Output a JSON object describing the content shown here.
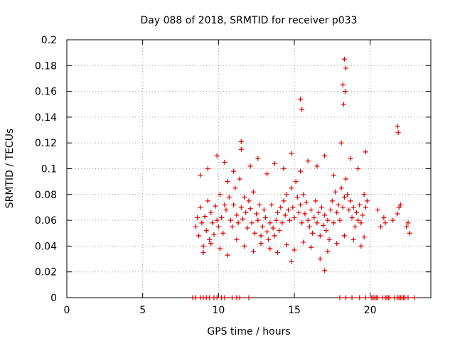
{
  "chart_data": {
    "type": "scatter",
    "title": "Day 088 of 2018, SRMTID for receiver p033",
    "xlabel": "GPS time / hours",
    "ylabel": "SRMTID / TECUs",
    "xlim": [
      0,
      24
    ],
    "ylim": [
      0,
      0.2
    ],
    "grid": true,
    "marker": "+",
    "color": "#dd0000",
    "x_ticks": [
      0,
      5,
      10,
      15,
      20
    ],
    "x_tick_labels": [
      "0",
      "5",
      "10",
      "15",
      "20"
    ],
    "y_ticks": [
      0,
      0.02,
      0.04,
      0.06,
      0.08,
      0.1,
      0.12,
      0.14,
      0.16,
      0.18,
      0.2
    ],
    "y_tick_labels": [
      "0",
      "0.02",
      "0.04",
      "0.06",
      "0.08",
      "0.1",
      "0.12",
      "0.14",
      "0.16",
      "0.18",
      "0.2"
    ],
    "series": [
      {
        "name": "SRMTID",
        "x": [
          8.5,
          8.6,
          8.7,
          8.8,
          8.9,
          9.0,
          9.1,
          9.2,
          9.3,
          9.4,
          9.5,
          9.6,
          9.7,
          9.8,
          9.9,
          10.0,
          10.1,
          10.2,
          10.3,
          10.4,
          10.5,
          10.6,
          10.7,
          10.8,
          10.9,
          11.0,
          11.1,
          11.2,
          11.3,
          11.4,
          11.5,
          11.6,
          11.7,
          11.8,
          11.9,
          12.0,
          12.1,
          12.2,
          12.3,
          12.4,
          12.5,
          12.6,
          12.7,
          12.8,
          12.9,
          13.0,
          13.1,
          13.2,
          13.3,
          13.4,
          13.5,
          13.6,
          13.7,
          13.8,
          13.9,
          14.0,
          14.1,
          14.2,
          14.3,
          14.4,
          14.5,
          14.6,
          14.7,
          14.8,
          14.9,
          15.0,
          15.1,
          15.2,
          15.3,
          15.4,
          15.5,
          15.6,
          15.7,
          15.8,
          15.9,
          16.0,
          16.1,
          16.2,
          16.3,
          16.4,
          16.5,
          16.6,
          16.7,
          16.8,
          16.9,
          17.0,
          17.1,
          17.2,
          17.3,
          17.4,
          17.5,
          17.6,
          17.7,
          17.8,
          17.9,
          18.0,
          18.1,
          18.2,
          18.3,
          18.4,
          18.5,
          18.6,
          18.7,
          18.8,
          18.9,
          19.0,
          19.1,
          19.2,
          19.3,
          19.4,
          19.5,
          19.6,
          19.7,
          19.8,
          20.5,
          20.7,
          20.9,
          21.0,
          21.5,
          21.8,
          21.9,
          22.0,
          22.4,
          22.5,
          22.6,
          9.0,
          9.5,
          10.1,
          10.6,
          11.2,
          11.7,
          12.3,
          12.8,
          13.4,
          13.9,
          14.5,
          15.0,
          15.6,
          16.1,
          16.7,
          17.2,
          17.8,
          18.3,
          18.9,
          19.4,
          8.8,
          9.3,
          9.9,
          10.4,
          11.0,
          11.5,
          12.1,
          12.6,
          13.2,
          13.7,
          14.3,
          14.8,
          15.4,
          15.9,
          16.5,
          17.0,
          17.6,
          18.1,
          18.7,
          19.2,
          19.7,
          18.3,
          18.4,
          18.35,
          18.2,
          18.25,
          15.4,
          15.5,
          21.8,
          21.85,
          11.5,
          14.8,
          17.0,
          19.6
        ],
        "y": [
          0.055,
          0.062,
          0.048,
          0.07,
          0.058,
          0.04,
          0.063,
          0.052,
          0.075,
          0.045,
          0.066,
          0.058,
          0.049,
          0.071,
          0.06,
          0.055,
          0.08,
          0.062,
          0.05,
          0.072,
          0.068,
          0.09,
          0.078,
          0.06,
          0.055,
          0.072,
          0.085,
          0.064,
          0.058,
          0.092,
          0.07,
          0.061,
          0.078,
          0.066,
          0.054,
          0.075,
          0.069,
          0.058,
          0.082,
          0.05,
          0.065,
          0.06,
          0.072,
          0.048,
          0.055,
          0.068,
          0.062,
          0.051,
          0.045,
          0.058,
          0.072,
          0.054,
          0.048,
          0.06,
          0.066,
          0.052,
          0.07,
          0.058,
          0.075,
          0.064,
          0.08,
          0.068,
          0.06,
          0.085,
          0.07,
          0.062,
          0.09,
          0.078,
          0.066,
          0.072,
          0.058,
          0.08,
          0.065,
          0.074,
          0.06,
          0.055,
          0.068,
          0.05,
          0.062,
          0.075,
          0.058,
          0.066,
          0.048,
          0.07,
          0.056,
          0.064,
          0.052,
          0.06,
          0.045,
          0.068,
          0.075,
          0.058,
          0.082,
          0.066,
          0.072,
          0.06,
          0.085,
          0.07,
          0.078,
          0.092,
          0.08,
          0.068,
          0.075,
          0.062,
          0.07,
          0.055,
          0.066,
          0.06,
          0.072,
          0.058,
          0.064,
          0.08,
          0.07,
          0.075,
          0.068,
          0.055,
          0.062,
          0.058,
          0.06,
          0.065,
          0.07,
          0.072,
          0.055,
          0.058,
          0.05,
          0.035,
          0.042,
          0.038,
          0.033,
          0.045,
          0.04,
          0.036,
          0.042,
          0.038,
          0.035,
          0.041,
          0.037,
          0.043,
          0.039,
          0.03,
          0.036,
          0.042,
          0.048,
          0.045,
          0.04,
          0.095,
          0.1,
          0.11,
          0.105,
          0.098,
          0.115,
          0.102,
          0.108,
          0.096,
          0.104,
          0.1,
          0.112,
          0.098,
          0.106,
          0.102,
          0.11,
          0.095,
          0.12,
          0.108,
          0.1,
          0.113,
          0.185,
          0.178,
          0.16,
          0.165,
          0.15,
          0.154,
          0.146,
          0.133,
          0.128,
          0.121,
          0.028,
          0.021,
          0.047
        ],
        "zero_x": [
          8.3,
          8.5,
          8.8,
          9.0,
          9.2,
          9.4,
          9.7,
          9.9,
          10.2,
          10.4,
          10.9,
          11.2,
          11.4,
          12.0,
          18.0,
          18.4,
          18.8,
          19.3,
          19.7,
          20.1,
          20.2,
          20.3,
          20.4,
          20.5,
          20.8,
          21.0,
          21.1,
          21.2,
          21.3,
          21.6,
          21.8,
          21.9,
          22.0,
          22.1,
          22.2,
          22.3,
          22.5,
          22.9
        ]
      }
    ]
  }
}
